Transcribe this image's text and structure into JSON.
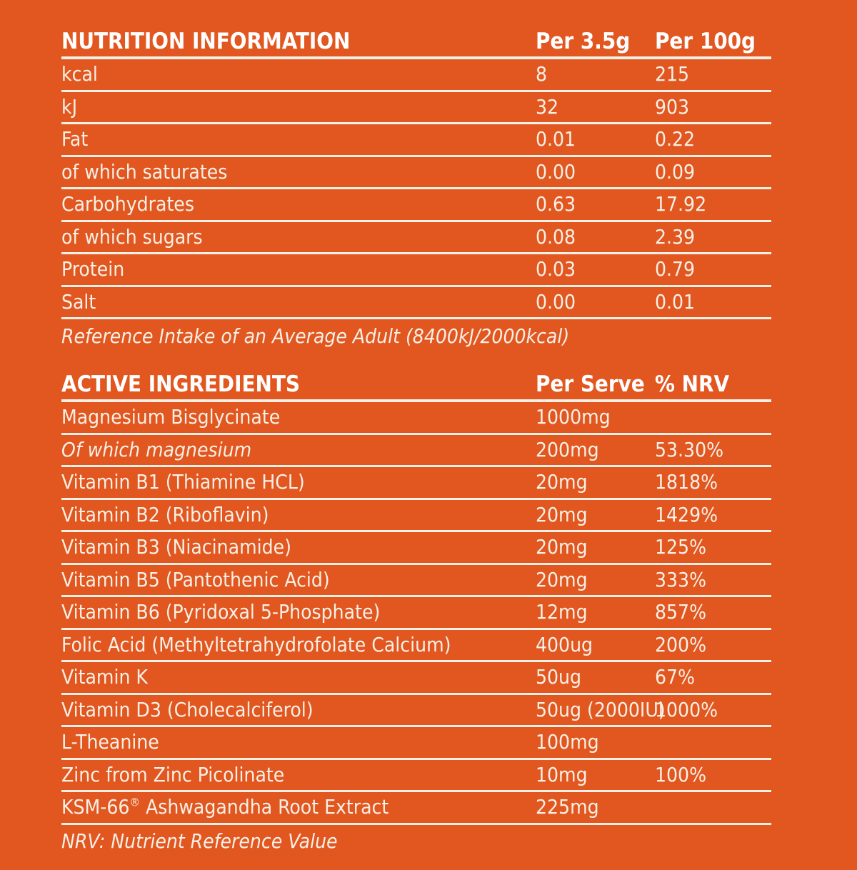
{
  "page": {
    "background_color": "#E2561F",
    "text_color": "#F7F0E6",
    "header_text_color": "#FFFFFF"
  },
  "nutrition_table": {
    "title": "NUTRITION INFORMATION",
    "col_per_serving_header": "Per 3.5g",
    "col_per_100g_header": "Per 100g",
    "rows": [
      {
        "label": "kcal",
        "amount": "8",
        "nrv": "215"
      },
      {
        "label": "kJ",
        "amount": "32",
        "nrv": "903"
      },
      {
        "label": "Fat",
        "amount": "0.01",
        "nrv": "0.22"
      },
      {
        "label": "of which saturates",
        "amount": "0.00",
        "nrv": "0.09"
      },
      {
        "label": "Carbohydrates",
        "amount": "0.63",
        "nrv": "17.92"
      },
      {
        "label": "of which sugars",
        "amount": "0.08",
        "nrv": "2.39"
      },
      {
        "label": "Protein",
        "amount": "0.03",
        "nrv": "0.79"
      },
      {
        "label": "Salt",
        "amount": "0.00",
        "nrv": "0.01"
      }
    ],
    "note": "Reference Intake of an Average Adult (8400kJ/2000kcal)"
  },
  "active_ingredients_table": {
    "title": "ACTIVE INGREDIENTS",
    "col_per_serve_header": "Per Serve",
    "col_nrv_header": "% NRV",
    "rows": [
      {
        "label": "Magnesium Bisglycinate",
        "amount": "1000mg",
        "nrv": ""
      },
      {
        "label": "Of which magnesium",
        "amount": "200mg",
        "nrv": "53.30%",
        "italic": true
      },
      {
        "label": "Vitamin B1 (Thiamine HCL)",
        "amount": "20mg",
        "nrv": "1818%"
      },
      {
        "label": "Vitamin B2 (Riboflavin)",
        "amount": "20mg",
        "nrv": "1429%"
      },
      {
        "label": "Vitamin B3 (Niacinamide)",
        "amount": "20mg",
        "nrv": "125%"
      },
      {
        "label": "Vitamin B5 (Pantothenic Acid)",
        "amount": "20mg",
        "nrv": "333%"
      },
      {
        "label": "Vitamin B6 (Pyridoxal 5-Phosphate)",
        "amount": "12mg",
        "nrv": "857%"
      },
      {
        "label": "Folic Acid (Methyltetrahydrofolate Calcium)",
        "amount": "400ug",
        "nrv": "200%"
      },
      {
        "label": "Vitamin K",
        "amount": "50ug",
        "nrv": "67%"
      },
      {
        "label": "Vitamin D3 (Cholecalciferol)",
        "amount": "50ug (2000IU)",
        "nrv": "1000%"
      },
      {
        "label": "L-Theanine",
        "amount": "100mg",
        "nrv": ""
      },
      {
        "label": "Zinc from Zinc Picolinate",
        "amount": "10mg",
        "nrv": "100%"
      },
      {
        "label": "KSM-66® Ashwagandha Root Extract",
        "amount": "225mg",
        "nrv": ""
      }
    ],
    "note": "NRV: Nutrient Reference Value"
  }
}
